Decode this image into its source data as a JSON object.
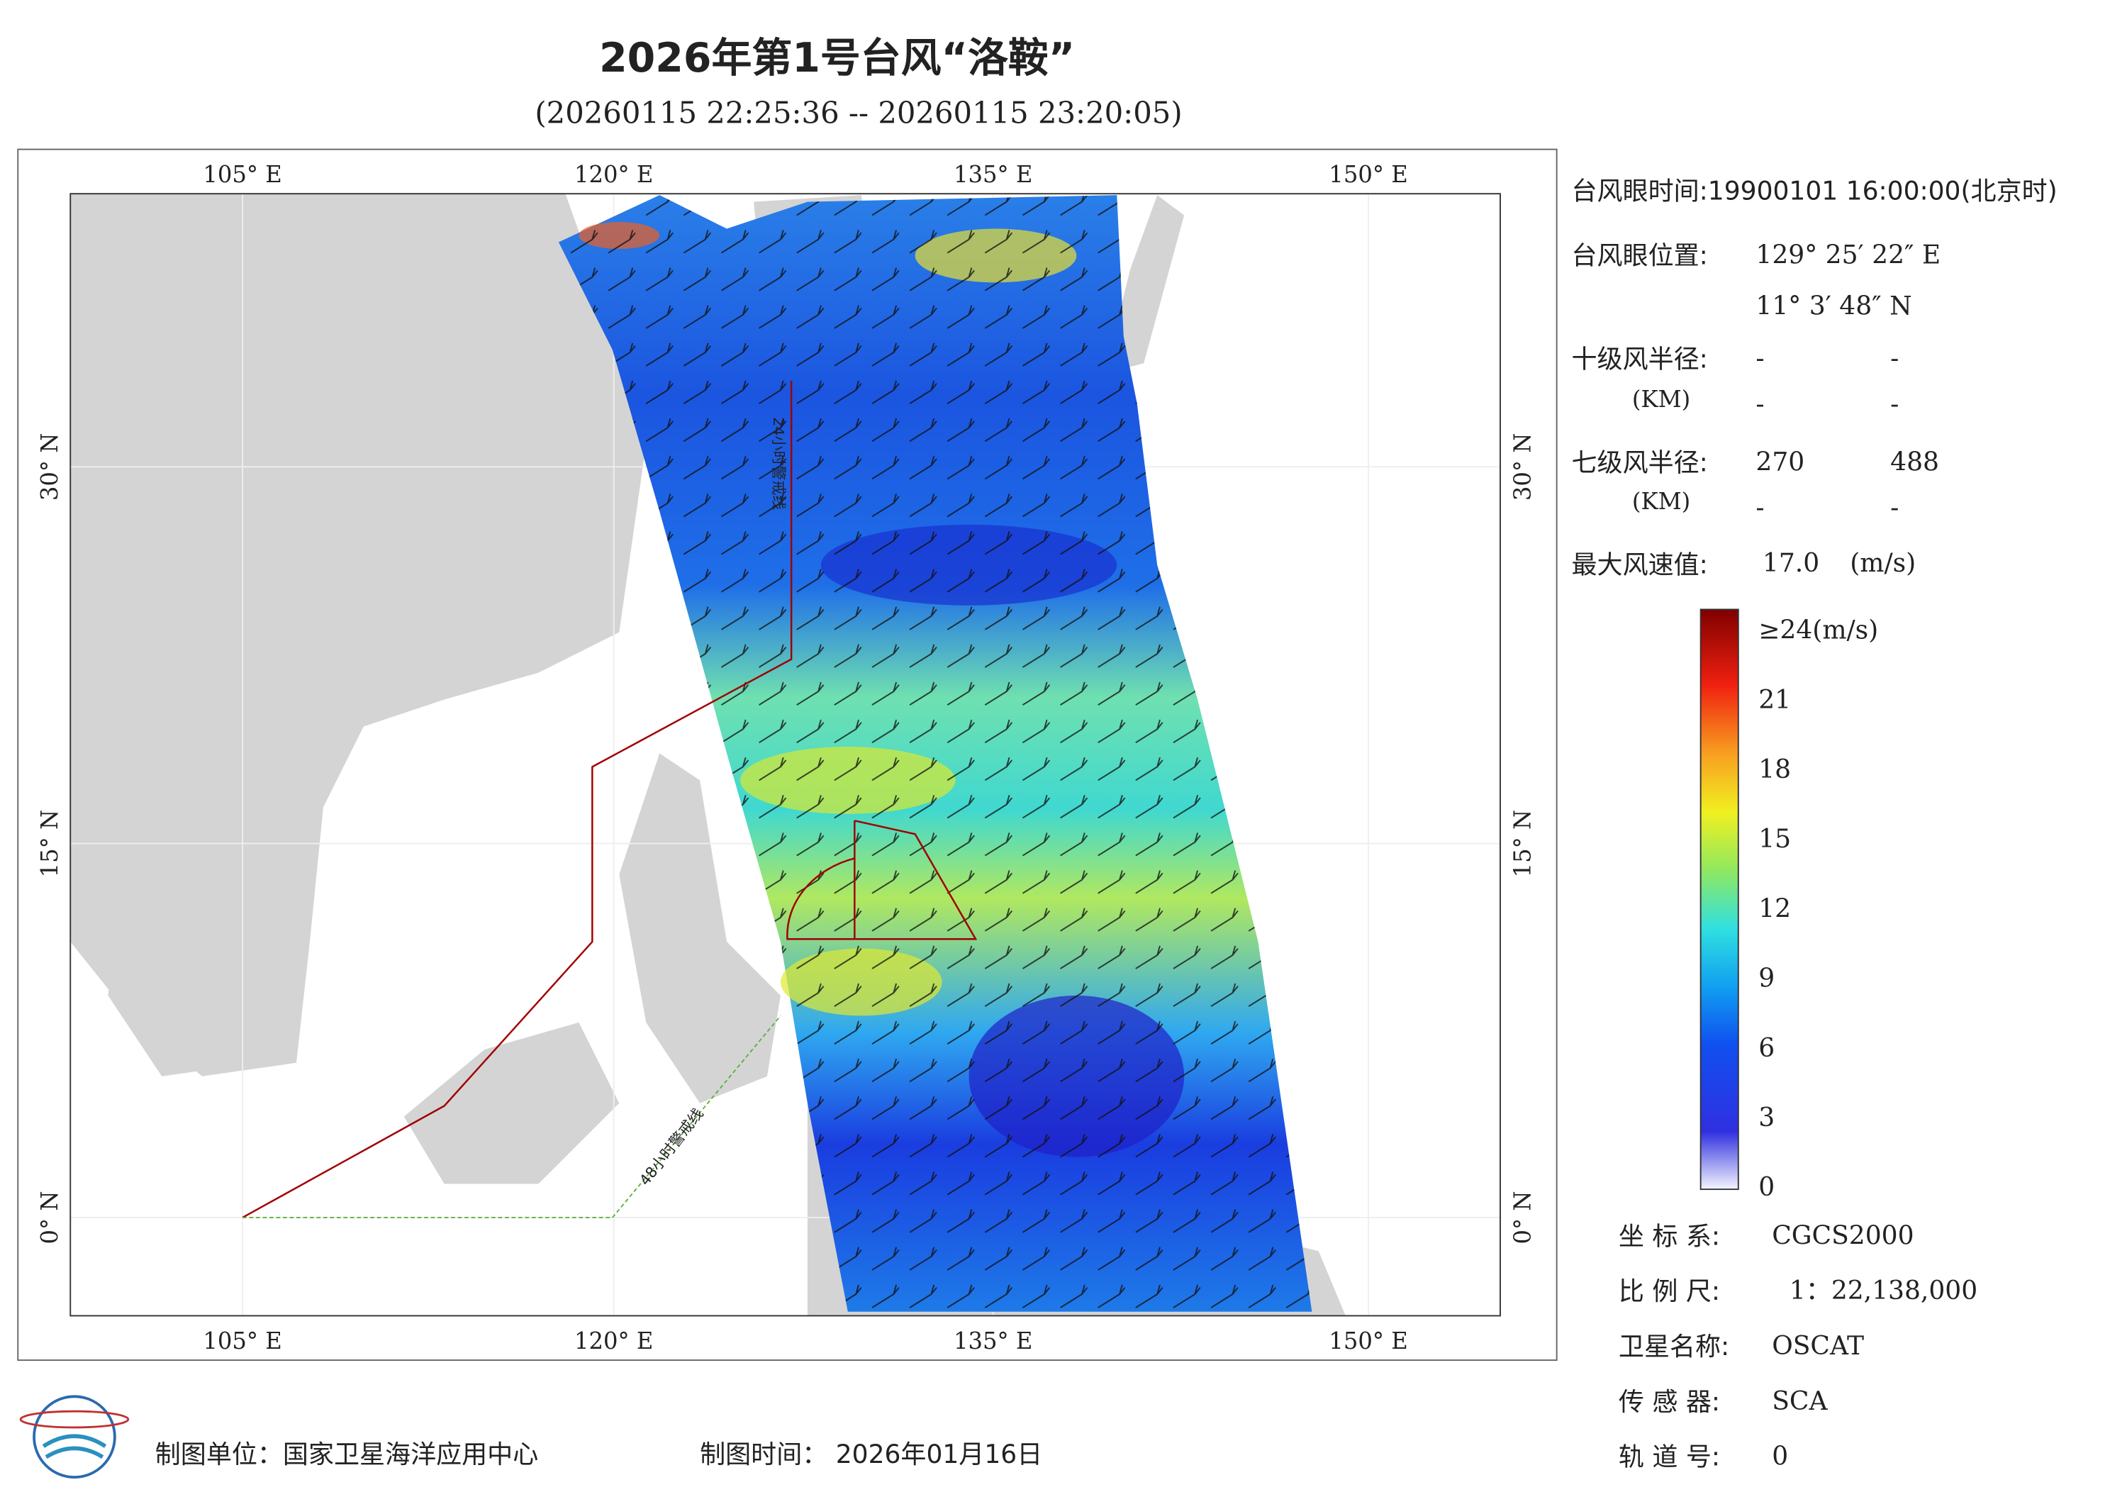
{
  "header": {
    "title": "2026年第1号台风“洛鞍”",
    "subtitle": "(20260115 22:25:36 -- 20260115 23:20:05)"
  },
  "map": {
    "lon_labels": [
      "105° E",
      "120° E",
      "135° E",
      "150° E"
    ],
    "lat_labels": [
      "30° N",
      "15° N",
      "0° N"
    ],
    "warning_24h": "24小时警戒线",
    "warning_48h": "48小时警戒线"
  },
  "info": {
    "eye_time": "台风眼时间:19900101 16:00:00(北京时)",
    "eye_position_label": "台风眼位置:",
    "eye_lon": "129° 25′ 22″ E",
    "eye_lat": "11° 3′ 48″ N",
    "r10_label": "十级风半径:",
    "r10_unit": "(KM)",
    "r10_values": [
      "-",
      "-",
      "-",
      "-"
    ],
    "r7_label": "七级风半径:",
    "r7_unit": "(KM)",
    "r7_values": [
      "270",
      "488",
      "-",
      "-"
    ],
    "max_wind_label": "最大风速值:",
    "max_wind": "17.0",
    "max_wind_unit": "(m/s)"
  },
  "colorbar": {
    "ticks": [
      {
        "value": 24,
        "label": "≥24(m/s)"
      },
      21,
      18,
      15,
      12,
      9,
      6,
      3,
      0
    ]
  },
  "meta": {
    "rows": [
      [
        "坐 标 系:",
        "CGCS2000"
      ],
      [
        "比 例 尺:",
        "1：22,138,000"
      ],
      [
        "卫星名称:",
        "OSCAT"
      ],
      [
        "传 感 器:",
        "SCA"
      ],
      [
        "轨 道 号:",
        "0"
      ]
    ]
  },
  "footer": {
    "unit": "制图单位：国家卫星海洋应用中心",
    "time": "制图时间： 2026年01月16日"
  }
}
